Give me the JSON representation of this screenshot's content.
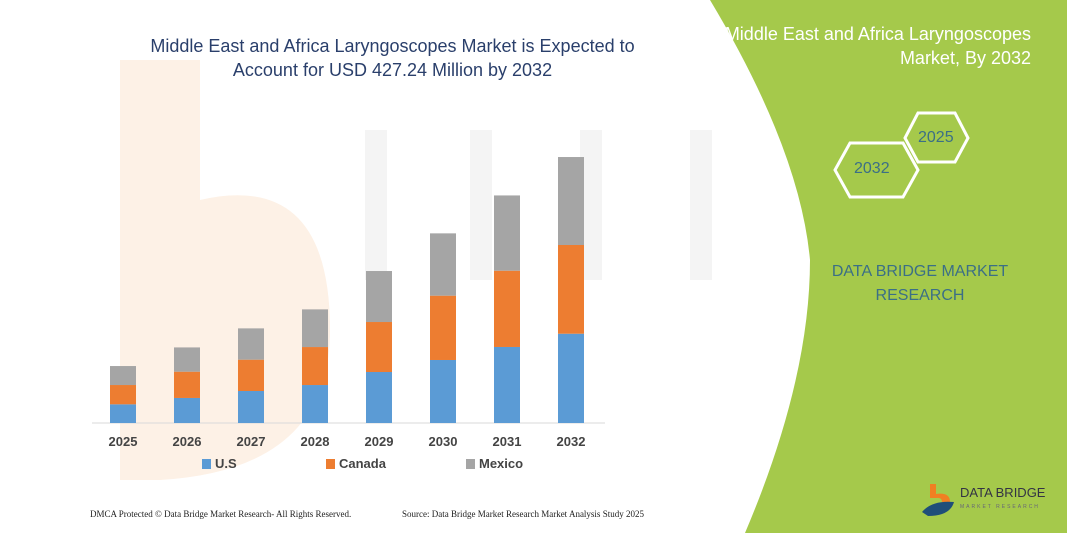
{
  "header": {
    "title": "Middle East and Africa Laryngoscopes Market is Expected to Account for USD 427.24 Million by 2032"
  },
  "side_panel": {
    "title": "Middle East and Africa Laryngoscopes Market, By 2032",
    "hex_end": "2032",
    "hex_start": "2025",
    "brand": "DATA BRIDGE MARKET RESEARCH",
    "green": "#a5c94b"
  },
  "footer": {
    "left": "DMCA Protected © Data Bridge Market Research- All Rights Reserved.",
    "right": "Source: Data Bridge Market Research Market Analysis Study 2025"
  },
  "logo": {
    "name": "DATA BRIDGE",
    "sub": "MARKET RESEARCH"
  },
  "chart_data": {
    "type": "bar",
    "stacked": true,
    "title": "Middle East and Africa Laryngoscopes Market is Expected to Account for USD 427.24 Million by 2032",
    "categories": [
      "2025",
      "2026",
      "2027",
      "2028",
      "2029",
      "2030",
      "2031",
      "2032"
    ],
    "series": [
      {
        "name": "U.S",
        "color": "#5b9bd5",
        "values": [
          30.0,
          40.2,
          51.4,
          61.0,
          81.9,
          101.2,
          122.1,
          143.4
        ]
      },
      {
        "name": "Canada",
        "color": "#ed7d31",
        "values": [
          31.0,
          42.2,
          50.3,
          61.0,
          80.3,
          103.3,
          122.5,
          142.5
        ]
      },
      {
        "name": "Mexico",
        "color": "#a5a5a5",
        "values": [
          30.5,
          39.0,
          50.3,
          60.5,
          81.9,
          100.1,
          120.9,
          141.3
        ]
      }
    ],
    "ylim": [
      0,
      427.24
    ],
    "grid": false,
    "y_axis_shown": false,
    "legend": "bottom"
  }
}
